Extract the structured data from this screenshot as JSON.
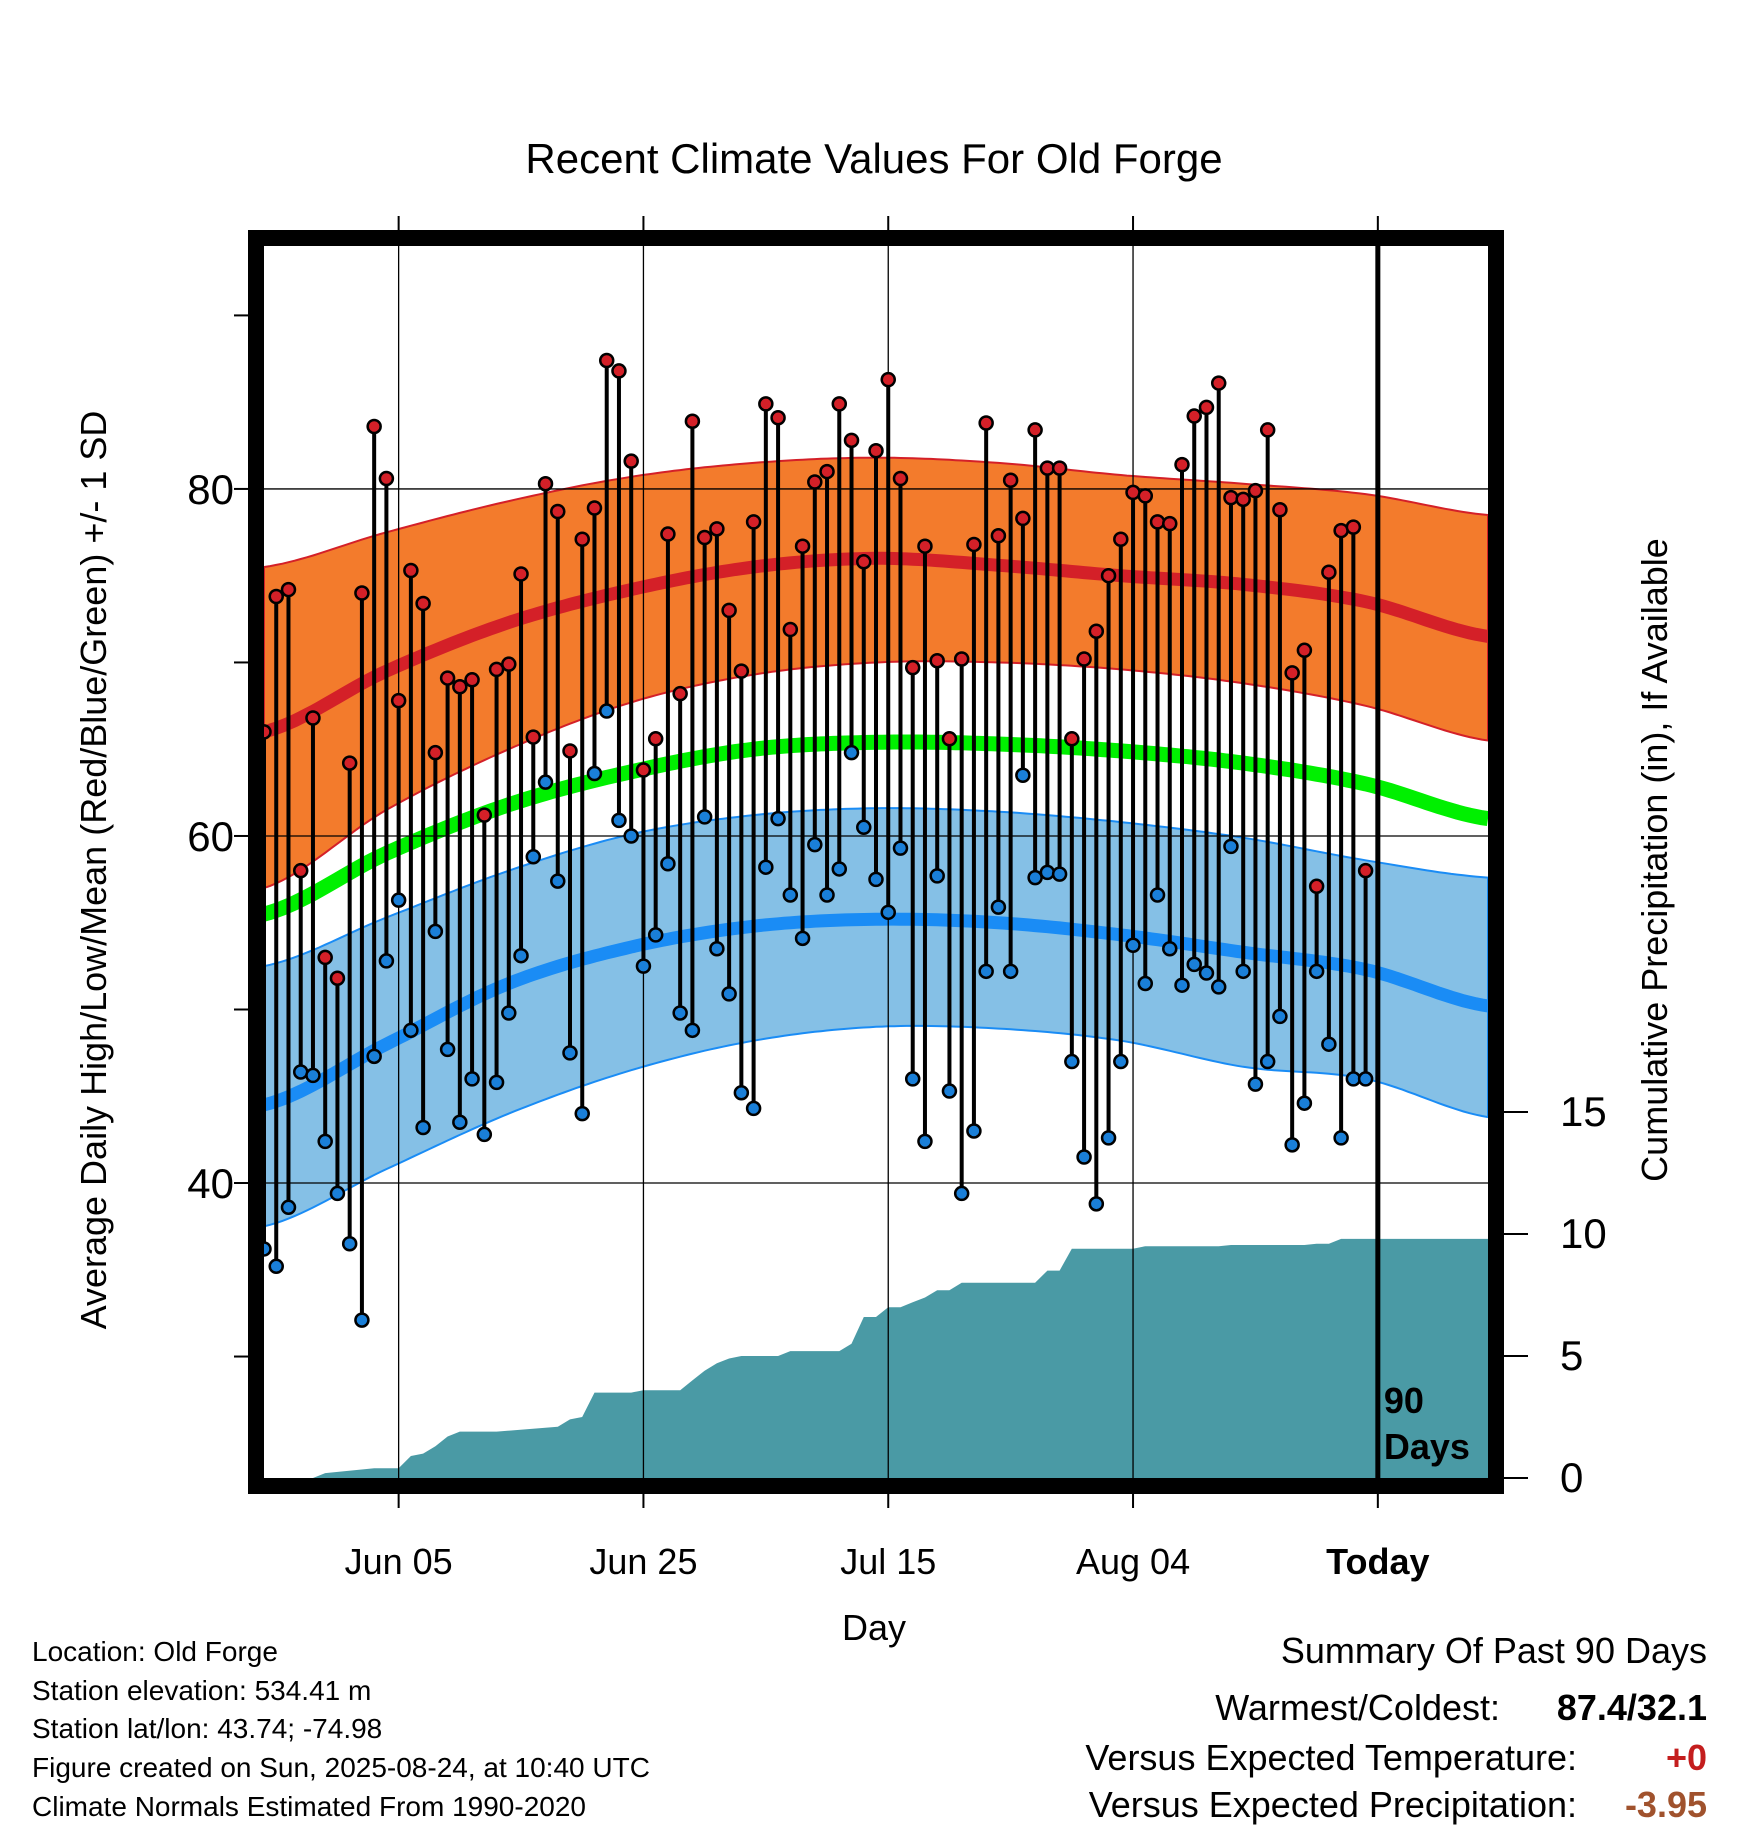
{
  "chart_data": {
    "type": "line",
    "title": "Recent Climate Values For Old Forge",
    "xlabel": "Day",
    "ylabel_left": "Average Daily High/Low/Mean (Red/Blue/Green) +/- 1 SD",
    "ylabel_right": "Cumulative Precipitation (in), If Available",
    "x_ticks": [
      "Jun 05",
      "Jun 25",
      "Jul 15",
      "Aug 04",
      "Today"
    ],
    "x_tick_days": [
      12,
      32,
      52,
      72,
      92
    ],
    "x_range": [
      1,
      101
    ],
    "y_left_ticks": [
      "40",
      "60",
      "80"
    ],
    "y_left_range": [
      23,
      94
    ],
    "y_right_ticks": [
      "0",
      "5",
      "10",
      "15"
    ],
    "y_right_range": [
      0,
      50.5
    ],
    "today_label": "90\nDays",
    "today_day": 92,
    "grid": true,
    "normals": {
      "days": [
        1,
        11,
        21,
        31,
        41,
        51,
        61,
        71,
        81,
        91,
        101
      ],
      "high_mean": [
        66.0,
        69.5,
        72.3,
        74.2,
        75.5,
        76.0,
        75.6,
        75.0,
        74.5,
        73.5,
        71.5
      ],
      "high_upper": [
        75.5,
        77.5,
        79.3,
        80.7,
        81.5,
        81.8,
        81.5,
        80.8,
        80.3,
        79.7,
        78.5
      ],
      "high_lower": [
        57.0,
        61.5,
        65.0,
        67.7,
        69.3,
        70.0,
        70.0,
        69.6,
        68.8,
        67.5,
        65.5
      ],
      "mean_normal": [
        55.5,
        59.0,
        61.8,
        63.7,
        65.0,
        65.4,
        65.3,
        64.9,
        64.2,
        63.0,
        61.0
      ],
      "low_mean": [
        44.5,
        48.0,
        51.5,
        53.6,
        54.8,
        55.2,
        55.0,
        54.3,
        53.3,
        52.3,
        50.2
      ],
      "low_upper": [
        52.5,
        55.3,
        58.0,
        60.1,
        61.2,
        61.6,
        61.4,
        60.8,
        59.9,
        58.6,
        57.6
      ],
      "low_lower": [
        37.5,
        40.8,
        44.0,
        46.5,
        48.2,
        49.0,
        48.9,
        48.2,
        46.7,
        46.0,
        43.8
      ]
    },
    "daily": {
      "days": [
        1,
        2,
        3,
        4,
        5,
        6,
        7,
        8,
        9,
        10,
        11,
        12,
        13,
        14,
        15,
        16,
        17,
        18,
        19,
        20,
        21,
        22,
        23,
        24,
        25,
        26,
        27,
        28,
        29,
        30,
        31,
        32,
        33,
        34,
        35,
        36,
        37,
        38,
        39,
        40,
        41,
        42,
        43,
        44,
        45,
        46,
        47,
        48,
        49,
        50,
        51,
        52,
        53,
        54,
        55,
        56,
        57,
        58,
        59,
        60,
        61,
        62,
        63,
        64,
        65,
        66,
        67,
        68,
        69,
        70,
        71,
        72,
        73,
        74,
        75,
        76,
        77,
        78,
        79,
        80,
        81,
        82,
        83,
        84,
        85,
        86,
        87,
        88,
        89,
        90,
        91
      ],
      "highs": [
        66.0,
        73.8,
        74.2,
        58.0,
        66.8,
        53.0,
        51.8,
        64.2,
        74.0,
        83.6,
        80.6,
        67.8,
        75.3,
        73.4,
        64.8,
        69.1,
        68.6,
        69.0,
        61.2,
        69.6,
        69.9,
        75.1,
        65.7,
        80.3,
        78.7,
        64.9,
        77.1,
        78.9,
        87.4,
        86.8,
        81.6,
        63.8,
        65.6,
        77.4,
        68.2,
        83.9,
        77.2,
        77.7,
        73.0,
        69.5,
        78.1,
        84.9,
        84.1,
        71.9,
        76.7,
        80.4,
        81.0,
        84.9,
        82.8,
        75.8,
        82.2,
        86.3,
        80.6,
        69.7,
        76.7,
        70.1,
        65.6,
        70.2,
        76.8,
        83.8,
        77.3,
        80.5,
        78.3,
        83.4,
        81.2,
        81.2,
        65.6,
        70.2,
        71.8,
        75.0,
        77.1,
        79.8,
        79.6,
        78.1,
        78.0,
        81.4,
        84.2,
        84.7,
        86.1,
        79.5,
        79.4,
        79.9,
        83.4,
        78.8,
        69.4,
        70.7,
        57.1,
        75.2,
        77.6,
        77.8,
        58.0
      ],
      "lows": [
        36.2,
        35.2,
        38.6,
        46.4,
        46.2,
        42.4,
        39.4,
        36.5,
        32.1,
        47.3,
        52.8,
        56.3,
        48.8,
        43.2,
        54.5,
        47.7,
        43.5,
        46.0,
        42.8,
        45.8,
        49.8,
        53.1,
        58.8,
        63.1,
        57.4,
        47.5,
        44.0,
        63.6,
        67.2,
        60.9,
        60.0,
        52.5,
        54.3,
        58.4,
        49.8,
        48.8,
        61.1,
        53.5,
        50.9,
        45.2,
        44.3,
        58.2,
        61.0,
        56.6,
        54.1,
        59.5,
        56.6,
        58.1,
        64.8,
        60.5,
        57.5,
        55.6,
        59.3,
        46.0,
        42.4,
        57.7,
        45.3,
        39.4,
        43.0,
        52.2,
        55.9,
        52.2,
        63.5,
        57.6,
        57.9,
        57.8,
        47.0,
        41.5,
        38.8,
        42.6,
        47.0,
        53.7,
        51.5,
        56.6,
        53.5,
        51.4,
        52.6,
        52.1,
        51.3,
        59.4,
        52.2,
        45.7,
        47.0,
        49.6,
        42.2,
        44.6,
        52.2,
        48.0,
        42.6,
        46.0,
        46.0
      ]
    },
    "precip_cumulative": {
      "days": [
        1,
        5,
        6,
        10,
        11,
        12,
        13,
        14,
        15,
        16,
        17,
        18,
        19,
        20,
        25,
        26,
        27,
        28,
        29,
        30,
        31,
        32,
        35,
        36,
        37,
        38,
        39,
        40,
        43,
        44,
        48,
        49,
        50,
        51,
        52,
        53,
        54,
        55,
        56,
        57,
        58,
        59,
        61,
        62,
        63,
        64,
        65,
        66,
        67,
        72,
        73,
        79,
        80,
        86,
        87,
        88,
        89,
        93,
        101
      ],
      "values": [
        0,
        0,
        0.2,
        0.4,
        0.4,
        0.4,
        0.9,
        1.0,
        1.3,
        1.7,
        1.9,
        1.9,
        1.9,
        1.9,
        2.1,
        2.4,
        2.5,
        3.5,
        3.5,
        3.5,
        3.5,
        3.6,
        3.6,
        4.0,
        4.4,
        4.7,
        4.9,
        5.0,
        5.0,
        5.2,
        5.2,
        5.5,
        6.6,
        6.6,
        7.0,
        7.0,
        7.2,
        7.4,
        7.7,
        7.7,
        8.0,
        8.0,
        8.0,
        8.0,
        8.0,
        8.0,
        8.5,
        8.5,
        9.4,
        9.4,
        9.5,
        9.5,
        9.55,
        9.55,
        9.6,
        9.6,
        9.8,
        9.8,
        9.8
      ]
    },
    "colors": {
      "high_band": "#f37b2c",
      "high_line": "#d42028",
      "low_band": "#85c0e6",
      "low_line": "#1a8cf5",
      "mean_line": "#00f000",
      "precip": "#4a9aa5",
      "high_dot": "#d42028",
      "low_dot": "#1a7fd8"
    }
  },
  "info": {
    "location": "Location: Old Forge",
    "elevation": "Station elevation: 534.41 m",
    "latlon": "Station lat/lon: 43.74; -74.98",
    "created": "Figure created on Sun, 2025-08-24, at 10:40 UTC",
    "normals_period": "Climate Normals Estimated From 1990-2020"
  },
  "summary": {
    "title": "Summary Of Past 90 Days",
    "warm_cold_label": "Warmest/Coldest:",
    "warm_cold_value": "87.4/32.1",
    "temp_label": "Versus Expected Temperature:",
    "temp_value": "+0",
    "temp_color": "#c41e1e",
    "precip_label": "Versus Expected Precipitation:",
    "precip_value": "-3.95",
    "precip_color": "#a0522d"
  }
}
